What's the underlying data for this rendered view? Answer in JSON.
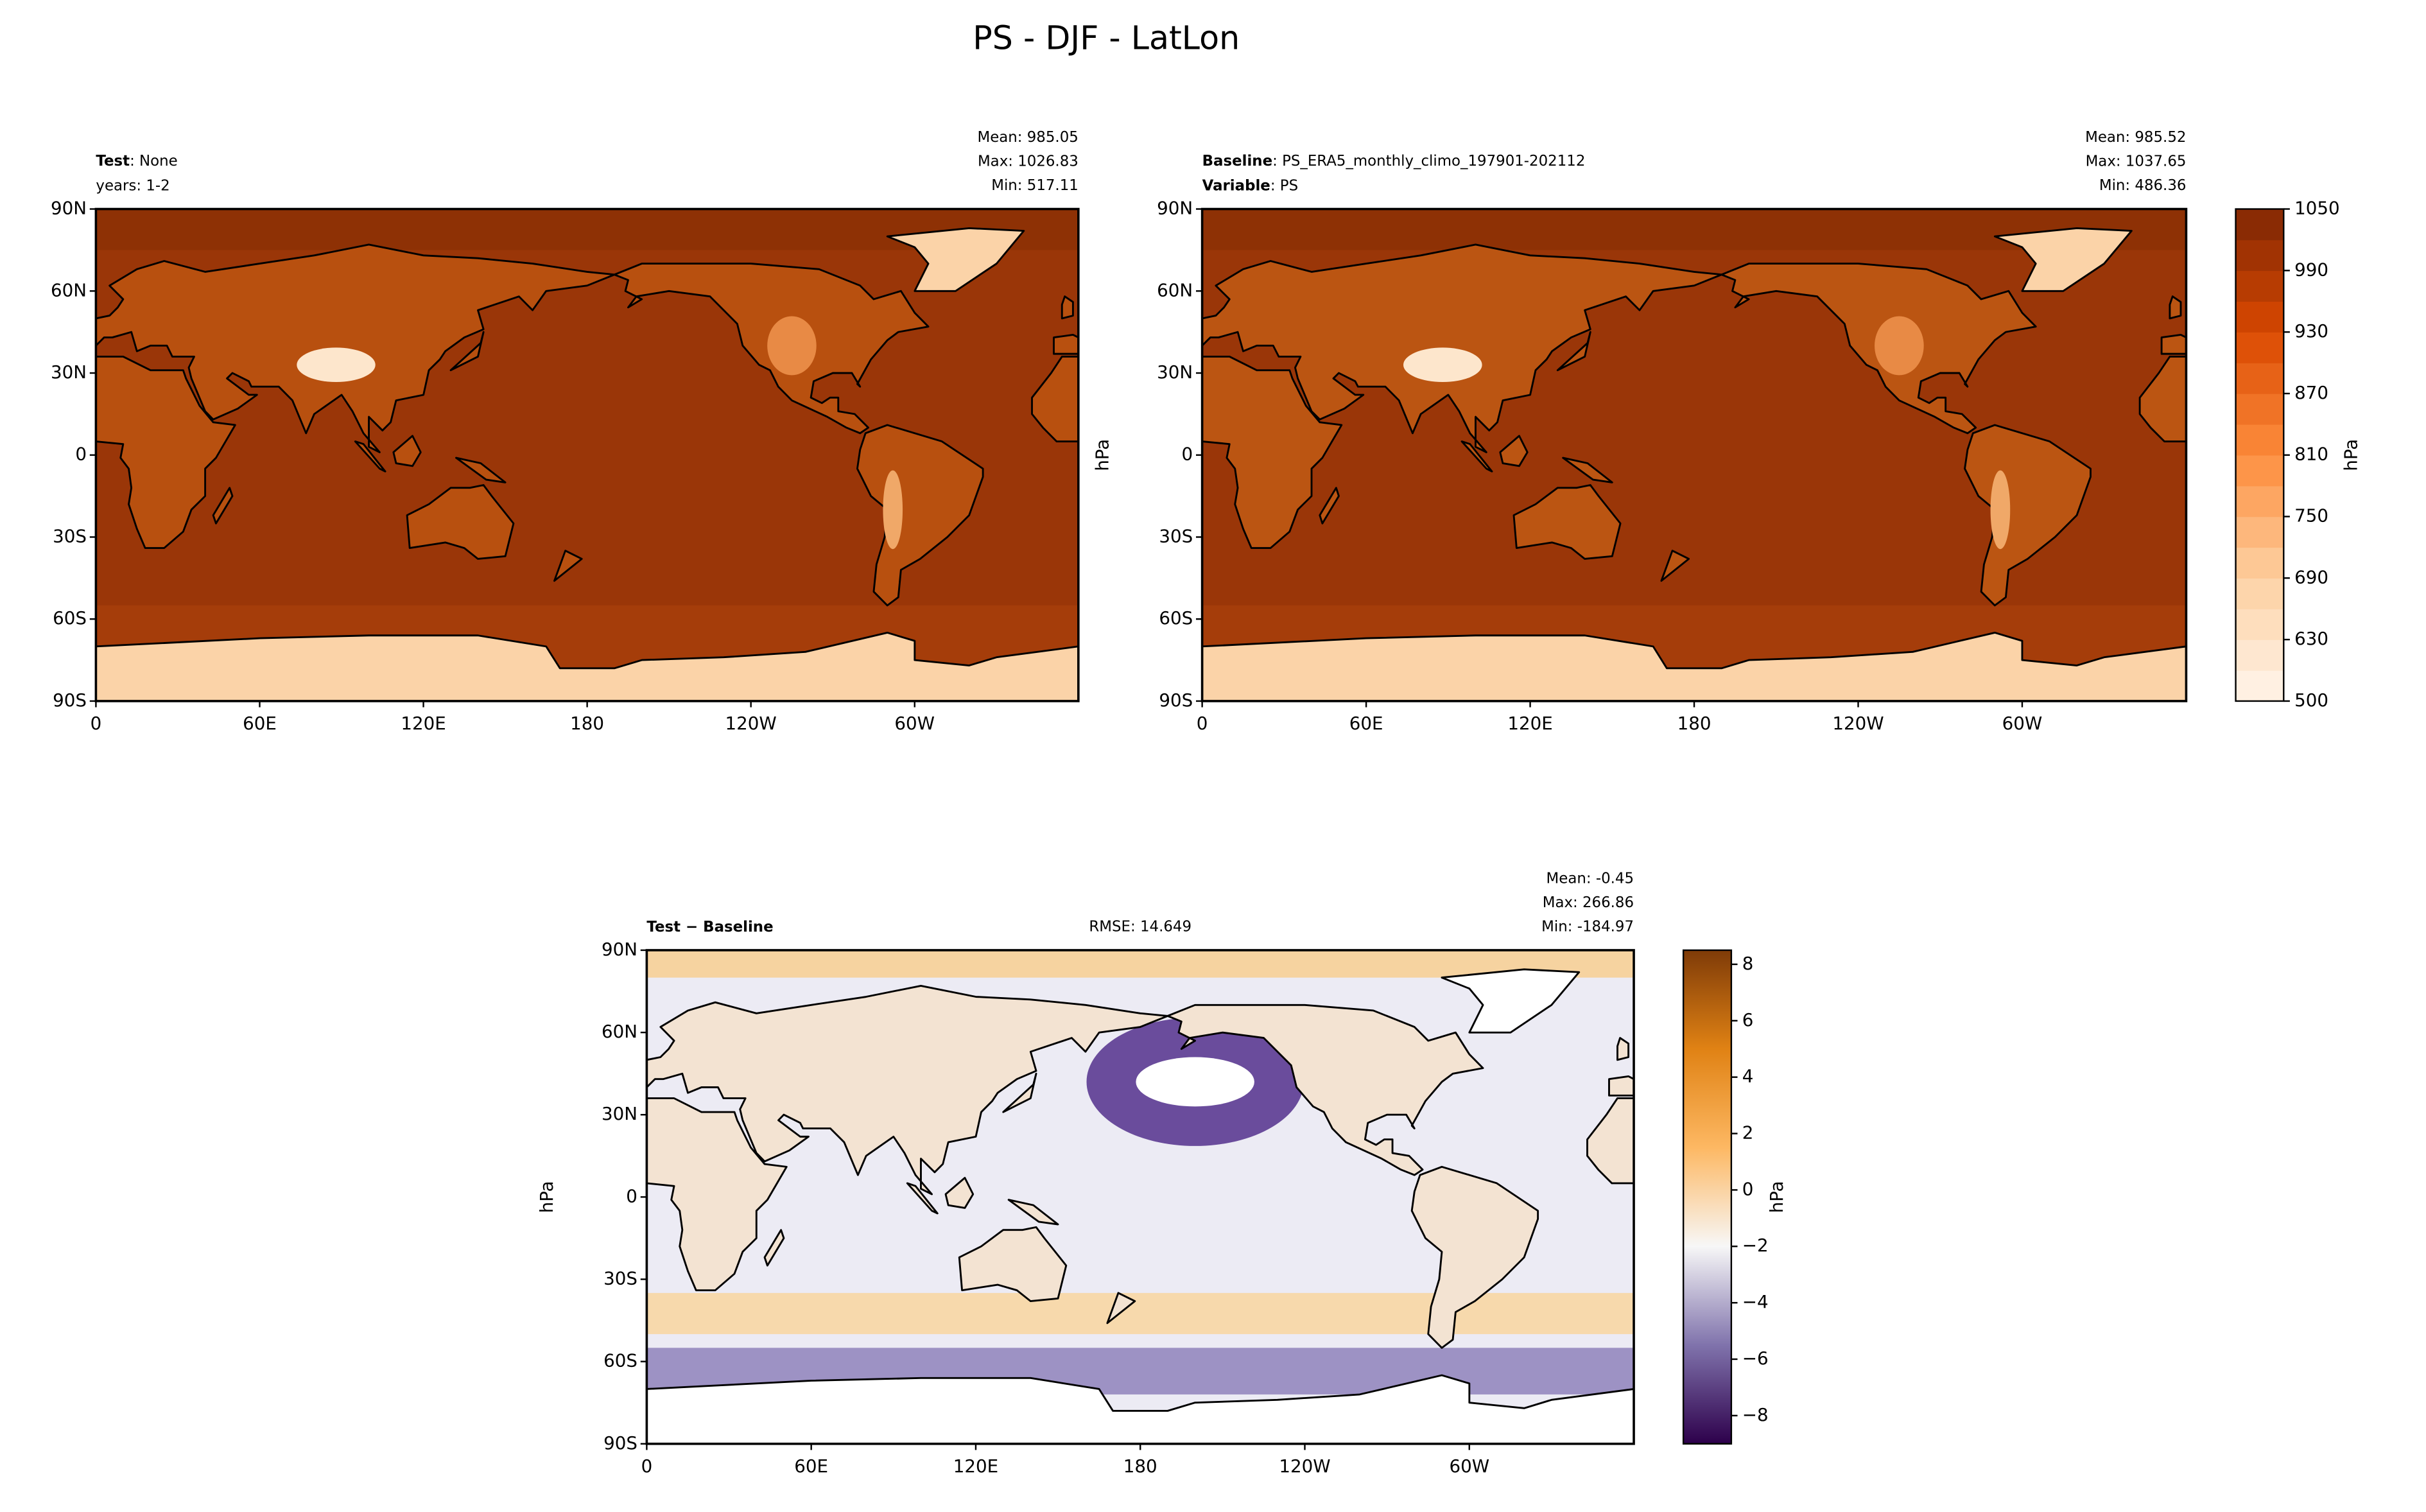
{
  "title": "PS - DJF - LatLon",
  "chart_data": [
    {
      "type": "map",
      "header": [
        {
          "bold": "Test",
          "text": ": None"
        },
        {
          "text": "years: 1-2"
        }
      ],
      "stats": [
        "Mean: 985.05",
        "Max: 1026.83",
        "Min: 517.11"
      ],
      "xlim": [
        0,
        360
      ],
      "ylim": [
        -90,
        90
      ],
      "xticks": [
        0,
        {
          "value": 60,
          "label": "60E"
        },
        {
          "value": 120,
          "label": "120E"
        },
        180,
        {
          "value": 240,
          "label": "120W"
        },
        {
          "value": 300,
          "label": "60W"
        }
      ],
      "yticks": [
        {
          "value": -90,
          "label": "90S"
        },
        {
          "value": -60,
          "label": "60S"
        },
        {
          "value": -30,
          "label": "30S"
        },
        0,
        {
          "value": 30,
          "label": "30N"
        },
        {
          "value": 60,
          "label": "60N"
        },
        {
          "value": 90,
          "label": "90N"
        }
      ],
      "ocean": "#9a3608",
      "land": "#b8500f",
      "ice": "#fbd3a8"
    },
    {
      "type": "map",
      "header": [
        {
          "bold": "Baseline",
          "text": ": PS_ERA5_monthly_climo_197901-202112"
        },
        {
          "bold": "Variable",
          "text": ": PS"
        }
      ],
      "stats": [
        "Mean: 985.52",
        "Max: 1037.65",
        "Min: 486.36"
      ],
      "ylabel": "hPa",
      "xlim": [
        0,
        360
      ],
      "ylim": [
        -90,
        90
      ],
      "xticks": [
        0,
        {
          "value": 60,
          "label": "60E"
        },
        {
          "value": 120,
          "label": "120E"
        },
        180,
        {
          "value": 240,
          "label": "120W"
        },
        {
          "value": 300,
          "label": "60W"
        }
      ],
      "yticks": [
        {
          "value": -90,
          "label": "90S"
        },
        {
          "value": -60,
          "label": "60S"
        },
        {
          "value": -30,
          "label": "30S"
        },
        0,
        {
          "value": 30,
          "label": "30N"
        },
        {
          "value": 60,
          "label": "60N"
        },
        {
          "value": 90,
          "label": "90N"
        }
      ],
      "ocean": "#9a3608",
      "land": "#bb5512",
      "ice": "#fbd3a8",
      "colorbar": {
        "label": "hPa",
        "spacing": "uniform",
        "ticks": [
          500,
          630,
          690,
          750,
          810,
          870,
          930,
          990,
          1050
        ],
        "colors": [
          "#fff5eb",
          "#fdd0a2",
          "#fd8d3c",
          "#d94801",
          "#7f2704"
        ]
      }
    },
    {
      "type": "map",
      "header": [
        {
          "bold": "Test − Baseline"
        }
      ],
      "center_text": "RMSE: 14.649",
      "stats": [
        "Mean: -0.45",
        "Max: 266.86",
        "Min: -184.97"
      ],
      "ylabel": "hPa",
      "xlim": [
        0,
        360
      ],
      "ylim": [
        -90,
        90
      ],
      "xticks": [
        0,
        {
          "value": 60,
          "label": "60E"
        },
        {
          "value": 120,
          "label": "120E"
        },
        180,
        {
          "value": 240,
          "label": "120W"
        },
        {
          "value": 300,
          "label": "60W"
        }
      ],
      "yticks": [
        {
          "value": -90,
          "label": "90S"
        },
        {
          "value": -60,
          "label": "60S"
        },
        {
          "value": -30,
          "label": "30S"
        },
        0,
        {
          "value": 30,
          "label": "30N"
        },
        {
          "value": 60,
          "label": "60N"
        },
        {
          "value": 90,
          "label": "90N"
        }
      ],
      "ocean": "#ecebf4",
      "land": "#f3e3d2",
      "ice": "#ffffff",
      "colorbar": {
        "label": "hPa",
        "lim": [
          -9,
          8.5
        ],
        "ticks": [
          {
            "value": -8,
            "label": "−8"
          },
          {
            "value": -6,
            "label": "−6"
          },
          {
            "value": -4,
            "label": "−4"
          },
          {
            "value": -2,
            "label": "−2"
          },
          0,
          2,
          4,
          6,
          8
        ],
        "colors": [
          "#2d004b",
          "#8073ac",
          "#f7f7f7",
          "#fdb863",
          "#e08214",
          "#7f3b08"
        ]
      }
    }
  ]
}
